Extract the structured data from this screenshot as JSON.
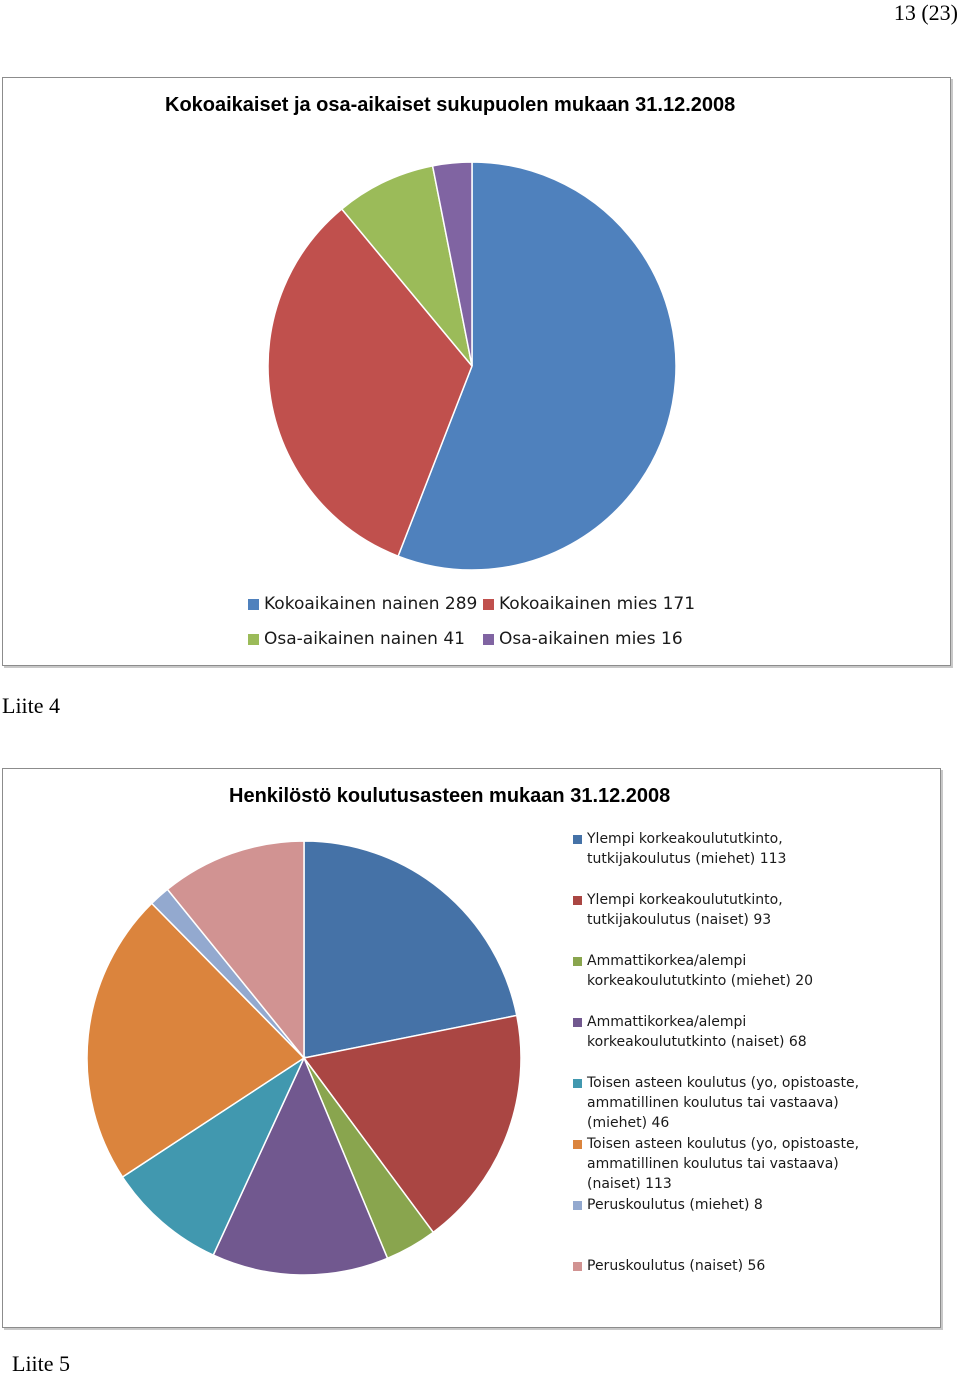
{
  "page": {
    "number": "13 (23)",
    "caption1": "Liite 4",
    "caption2": "Liite 5"
  },
  "chart_data": [
    {
      "type": "pie",
      "title": "Kokoaikaiset ja osa-aikaiset sukupuolen mukaan 31.12.2008",
      "legend_position": "bottom",
      "slices": [
        {
          "name": "Kokoaikainen nainen",
          "value": 289,
          "color": "#4F81BD"
        },
        {
          "name": "Kokoaikainen mies",
          "value": 171,
          "color": "#C0504D"
        },
        {
          "name": "Osa-aikainen nainen",
          "value": 41,
          "color": "#9BBB59"
        },
        {
          "name": "Osa-aikainen mies",
          "value": 16,
          "color": "#8064A2"
        }
      ]
    },
    {
      "type": "pie",
      "title": "Henkilöstö koulutusasteen mukaan 31.12.2008",
      "legend_position": "right",
      "slices": [
        {
          "name": "Ylempi korkeakoulututkinto, tutkijakoulutus (miehet)",
          "value": 113,
          "color": "#4572A7"
        },
        {
          "name": "Ylempi korkeakoulututkinto, tutkijakoulutus (naiset)",
          "value": 93,
          "color": "#AA4643"
        },
        {
          "name": "Ammattikorkea/alempi korkeakoulututkinto (miehet)",
          "value": 20,
          "color": "#89A54E"
        },
        {
          "name": "Ammattikorkea/alempi korkeakoulututkinto (naiset)",
          "value": 68,
          "color": "#71588F"
        },
        {
          "name": "Toisen asteen koulutus (yo, opistoaste, ammatillinen koulutus tai vastaava) (miehet)",
          "value": 46,
          "color": "#4198AF"
        },
        {
          "name": "Toisen asteen koulutus (yo, opistoaste, ammatillinen koulutus tai vastaava) (naiset)",
          "value": 113,
          "color": "#DB843D"
        },
        {
          "name": "Peruskoulutus (miehet)",
          "value": 8,
          "color": "#93A9CF"
        },
        {
          "name": "Peruskoulutus (naiset)",
          "value": 56,
          "color": "#D19392"
        }
      ]
    }
  ]
}
